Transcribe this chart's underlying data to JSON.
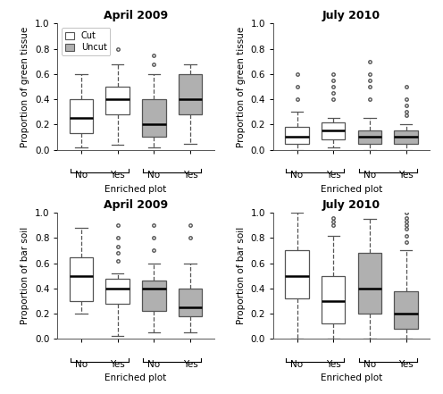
{
  "title_top_left": "April 2009",
  "title_top_right": "July 2010",
  "title_bot_left": "April 2009",
  "title_bot_right": "July 2010",
  "ylabel_top": "Proportion of green tissue",
  "ylabel_bot": "Proportion of bar soil",
  "xlabel": "Enriched plot",
  "xtick_labels": [
    "No",
    "Yes",
    "No",
    "Yes"
  ],
  "ylim": [
    0.0,
    1.0
  ],
  "yticks": [
    0.0,
    0.2,
    0.4,
    0.6,
    0.8,
    1.0
  ],
  "colors": {
    "cut": "white",
    "uncut": "#b0b0b0"
  },
  "legend_labels": [
    "Cut",
    "Uncut"
  ],
  "boxes": {
    "top_left": {
      "cut_no": {
        "med": 0.25,
        "q1": 0.13,
        "q3": 0.4,
        "whislo": 0.02,
        "whishi": 0.6,
        "fliers": []
      },
      "cut_yes": {
        "med": 0.4,
        "q1": 0.28,
        "q3": 0.5,
        "whislo": 0.04,
        "whishi": 0.68,
        "fliers": [
          0.8
        ]
      },
      "uncut_no": {
        "med": 0.2,
        "q1": 0.1,
        "q3": 0.4,
        "whislo": 0.02,
        "whishi": 0.6,
        "fliers": [
          0.68,
          0.75
        ]
      },
      "uncut_yes": {
        "med": 0.4,
        "q1": 0.28,
        "q3": 0.6,
        "whislo": 0.05,
        "whishi": 0.68,
        "fliers": []
      }
    },
    "top_right": {
      "cut_no": {
        "med": 0.1,
        "q1": 0.05,
        "q3": 0.18,
        "whislo": 0.0,
        "whishi": 0.3,
        "fliers": [
          0.4,
          0.5,
          0.6
        ]
      },
      "cut_yes": {
        "med": 0.15,
        "q1": 0.08,
        "q3": 0.22,
        "whislo": 0.02,
        "whishi": 0.25,
        "fliers": [
          0.4,
          0.45,
          0.5,
          0.55,
          0.6
        ]
      },
      "uncut_no": {
        "med": 0.1,
        "q1": 0.05,
        "q3": 0.15,
        "whislo": 0.0,
        "whishi": 0.25,
        "fliers": [
          0.4,
          0.5,
          0.55,
          0.6,
          0.7
        ]
      },
      "uncut_yes": {
        "med": 0.1,
        "q1": 0.05,
        "q3": 0.15,
        "whislo": 0.0,
        "whishi": 0.2,
        "fliers": [
          0.27,
          0.3,
          0.35,
          0.4,
          0.5
        ]
      }
    },
    "bot_left": {
      "cut_no": {
        "med": 0.5,
        "q1": 0.3,
        "q3": 0.65,
        "whislo": 0.2,
        "whishi": 0.88,
        "fliers": []
      },
      "cut_yes": {
        "med": 0.4,
        "q1": 0.28,
        "q3": 0.48,
        "whislo": 0.02,
        "whishi": 0.52,
        "fliers": [
          0.62,
          0.68,
          0.73,
          0.8,
          0.9
        ]
      },
      "uncut_no": {
        "med": 0.4,
        "q1": 0.22,
        "q3": 0.46,
        "whislo": 0.05,
        "whishi": 0.6,
        "fliers": [
          0.7,
          0.8,
          0.9
        ]
      },
      "uncut_yes": {
        "med": 0.25,
        "q1": 0.18,
        "q3": 0.4,
        "whislo": 0.05,
        "whishi": 0.6,
        "fliers": [
          0.8,
          0.9
        ]
      }
    },
    "bot_right": {
      "cut_no": {
        "med": 0.5,
        "q1": 0.32,
        "q3": 0.7,
        "whislo": 0.0,
        "whishi": 1.0,
        "fliers": []
      },
      "cut_yes": {
        "med": 0.3,
        "q1": 0.12,
        "q3": 0.5,
        "whislo": 0.0,
        "whishi": 0.82,
        "fliers": [
          0.9,
          0.93,
          0.96
        ]
      },
      "uncut_no": {
        "med": 0.4,
        "q1": 0.2,
        "q3": 0.68,
        "whislo": 0.0,
        "whishi": 0.95,
        "fliers": []
      },
      "uncut_yes": {
        "med": 0.2,
        "q1": 0.08,
        "q3": 0.38,
        "whislo": 0.0,
        "whishi": 0.7,
        "fliers": [
          0.77,
          0.82,
          0.87,
          0.9,
          0.93,
          0.96,
          1.0
        ]
      }
    }
  }
}
